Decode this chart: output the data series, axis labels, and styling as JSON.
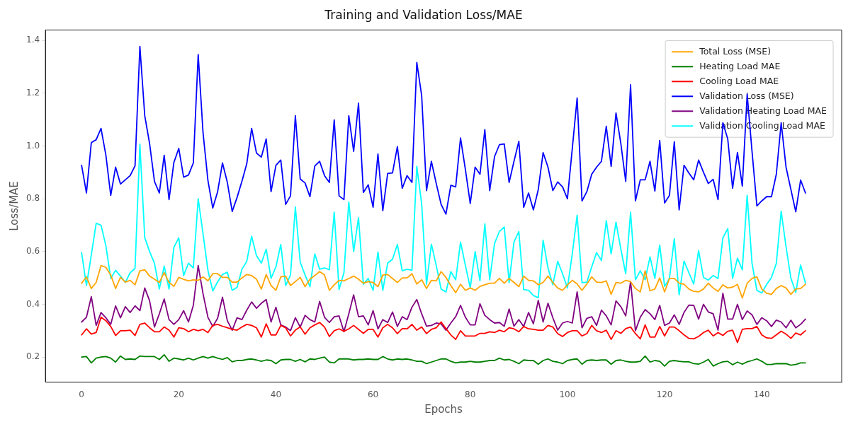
{
  "chart_data": {
    "type": "line",
    "title": "Training and Validation Loss/MAE",
    "xlabel": "Epochs",
    "ylabel": "Loss/MAE",
    "x": [
      0,
      1,
      2,
      3,
      4,
      5,
      6,
      7,
      8,
      9,
      10,
      11,
      12,
      13,
      14,
      15,
      16,
      17,
      18,
      19,
      20,
      21,
      22,
      23,
      24,
      25,
      26,
      27,
      28,
      29,
      30,
      31,
      32,
      33,
      34,
      35,
      36,
      37,
      38,
      39,
      40,
      41,
      42,
      43,
      44,
      45,
      46,
      47,
      48,
      49,
      50,
      51,
      52,
      53,
      54,
      55,
      56,
      57,
      58,
      59,
      60,
      61,
      62,
      63,
      64,
      65,
      66,
      67,
      68,
      69,
      70,
      71,
      72,
      73,
      74,
      75,
      76,
      77,
      78,
      79,
      80,
      81,
      82,
      83,
      84,
      85,
      86,
      87,
      88,
      89,
      90,
      91,
      92,
      93,
      94,
      95,
      96,
      97,
      98,
      99,
      100,
      101,
      102,
      103,
      104,
      105,
      106,
      107,
      108,
      109,
      110,
      111,
      112,
      113,
      114,
      115,
      116,
      117,
      118,
      119,
      120,
      121,
      122,
      123,
      124,
      125,
      126,
      127,
      128,
      129,
      130,
      131,
      132,
      133,
      134,
      135,
      136,
      137,
      138,
      139,
      140,
      141,
      142,
      143,
      144,
      145,
      146,
      147,
      148,
      149
    ],
    "xlim": [
      -7.45,
      156.45
    ],
    "xticks": [
      0,
      20,
      40,
      60,
      80,
      100,
      120,
      140
    ],
    "ylim": [
      0.105,
      1.44
    ],
    "yticks": [
      0.2,
      0.4,
      0.6,
      0.8,
      {
        "value": 1,
        "label": "1.0"
      },
      1.2,
      1.4
    ],
    "legend": "top right",
    "marker": "none",
    "line_style": "solid",
    "series": [
      {
        "name": "Total Loss (MSE)",
        "color": "#ffa500",
        "values": [
          0.48,
          0.504,
          0.46,
          0.483,
          0.547,
          0.54,
          0.511,
          0.46,
          0.502,
          0.484,
          0.491,
          0.474,
          0.527,
          0.531,
          0.507,
          0.495,
          0.483,
          0.52,
          0.483,
          0.468,
          0.502,
          0.495,
          0.489,
          0.493,
          0.491,
          0.504,
          0.489,
          0.516,
          0.516,
          0.502,
          0.502,
          0.484,
          0.484,
          0.5,
          0.513,
          0.509,
          0.495,
          0.458,
          0.513,
          0.471,
          0.453,
          0.504,
          0.507,
          0.471,
          0.486,
          0.502,
          0.467,
          0.495,
          0.509,
          0.524,
          0.511,
          0.453,
          0.474,
          0.491,
          0.489,
          0.498,
          0.507,
          0.495,
          0.48,
          0.486,
          0.483,
          0.467,
          0.511,
          0.513,
          0.498,
          0.483,
          0.5,
          0.5,
          0.516,
          0.477,
          0.493,
          0.46,
          0.491,
          0.489,
          0.524,
          0.502,
          0.471,
          0.444,
          0.476,
          0.453,
          0.462,
          0.453,
          0.468,
          0.474,
          0.48,
          0.48,
          0.498,
          0.48,
          0.498,
          0.483,
          0.467,
          0.507,
          0.491,
          0.489,
          0.474,
          0.483,
          0.507,
          0.483,
          0.462,
          0.453,
          0.474,
          0.491,
          0.477,
          0.453,
          0.477,
          0.504,
          0.484,
          0.483,
          0.489,
          0.438,
          0.483,
          0.48,
          0.491,
          0.486,
          0.46,
          0.447,
          0.527,
          0.451,
          0.458,
          0.5,
          0.447,
          0.498,
          0.498,
          0.48,
          0.476,
          0.458,
          0.449,
          0.447,
          0.458,
          0.48,
          0.462,
          0.449,
          0.474,
          0.462,
          0.465,
          0.476,
          0.424,
          0.48,
          0.498,
          0.504,
          0.458,
          0.442,
          0.438,
          0.46,
          0.471,
          0.462,
          0.438,
          0.458,
          0.46,
          0.476
        ]
      },
      {
        "name": "Heating Load MAE",
        "color": "#008000",
        "values": [
          0.2,
          0.202,
          0.178,
          0.196,
          0.2,
          0.202,
          0.196,
          0.181,
          0.204,
          0.191,
          0.193,
          0.191,
          0.204,
          0.202,
          0.202,
          0.202,
          0.191,
          0.209,
          0.184,
          0.196,
          0.193,
          0.189,
          0.196,
          0.189,
          0.196,
          0.202,
          0.196,
          0.202,
          0.196,
          0.191,
          0.198,
          0.182,
          0.187,
          0.187,
          0.191,
          0.193,
          0.189,
          0.184,
          0.189,
          0.187,
          0.175,
          0.189,
          0.191,
          0.191,
          0.184,
          0.191,
          0.182,
          0.193,
          0.191,
          0.196,
          0.2,
          0.181,
          0.178,
          0.193,
          0.193,
          0.193,
          0.189,
          0.191,
          0.191,
          0.193,
          0.191,
          0.191,
          0.202,
          0.193,
          0.189,
          0.193,
          0.191,
          0.193,
          0.189,
          0.184,
          0.184,
          0.175,
          0.181,
          0.187,
          0.193,
          0.193,
          0.184,
          0.178,
          0.181,
          0.181,
          0.184,
          0.181,
          0.181,
          0.184,
          0.187,
          0.187,
          0.196,
          0.189,
          0.191,
          0.184,
          0.175,
          0.189,
          0.187,
          0.187,
          0.173,
          0.187,
          0.193,
          0.184,
          0.181,
          0.175,
          0.187,
          0.191,
          0.193,
          0.173,
          0.187,
          0.189,
          0.187,
          0.189,
          0.189,
          0.173,
          0.187,
          0.189,
          0.184,
          0.181,
          0.181,
          0.184,
          0.204,
          0.181,
          0.187,
          0.184,
          0.166,
          0.184,
          0.187,
          0.184,
          0.182,
          0.182,
          0.175,
          0.173,
          0.181,
          0.191,
          0.166,
          0.175,
          0.182,
          0.184,
          0.171,
          0.181,
          0.173,
          0.182,
          0.187,
          0.193,
          0.184,
          0.172,
          0.172,
          0.175,
          0.175,
          0.175,
          0.169,
          0.172,
          0.178,
          0.178
        ]
      },
      {
        "name": "Cooling Load MAE",
        "color": "#ff0000",
        "values": [
          0.284,
          0.307,
          0.287,
          0.293,
          0.351,
          0.338,
          0.316,
          0.282,
          0.3,
          0.3,
          0.302,
          0.282,
          0.324,
          0.329,
          0.311,
          0.296,
          0.296,
          0.314,
          0.302,
          0.276,
          0.311,
          0.308,
          0.296,
          0.305,
          0.3,
          0.305,
          0.293,
          0.32,
          0.324,
          0.317,
          0.311,
          0.305,
          0.302,
          0.314,
          0.324,
          0.32,
          0.311,
          0.276,
          0.326,
          0.284,
          0.284,
          0.32,
          0.311,
          0.28,
          0.302,
          0.314,
          0.287,
          0.311,
          0.322,
          0.331,
          0.314,
          0.278,
          0.3,
          0.307,
          0.298,
          0.307,
          0.32,
          0.305,
          0.29,
          0.305,
          0.305,
          0.276,
          0.311,
          0.324,
          0.311,
          0.289,
          0.308,
          0.307,
          0.324,
          0.302,
          0.314,
          0.289,
          0.305,
          0.311,
          0.333,
          0.308,
          0.284,
          0.267,
          0.3,
          0.28,
          0.28,
          0.28,
          0.29,
          0.29,
          0.296,
          0.293,
          0.302,
          0.296,
          0.311,
          0.307,
          0.296,
          0.316,
          0.307,
          0.305,
          0.302,
          0.302,
          0.32,
          0.314,
          0.289,
          0.278,
          0.293,
          0.3,
          0.3,
          0.28,
          0.289,
          0.32,
          0.3,
          0.293,
          0.302,
          0.267,
          0.3,
          0.29,
          0.308,
          0.314,
          0.289,
          0.269,
          0.322,
          0.276,
          0.276,
          0.316,
          0.28,
          0.314,
          0.314,
          0.3,
          0.284,
          0.271,
          0.269,
          0.278,
          0.293,
          0.302,
          0.28,
          0.293,
          0.282,
          0.298,
          0.302,
          0.255,
          0.305,
          0.308,
          0.308,
          0.316,
          0.284,
          0.273,
          0.271,
          0.284,
          0.298,
          0.287,
          0.271,
          0.291,
          0.284,
          0.3
        ]
      },
      {
        "name": "Validation Loss (MSE)",
        "color": "#0000ff",
        "values": [
          0.927,
          0.822,
          1.013,
          1.024,
          1.067,
          0.965,
          0.813,
          0.92,
          0.856,
          0.872,
          0.888,
          0.925,
          1.378,
          1.115,
          1.009,
          0.866,
          0.822,
          0.965,
          0.797,
          0.938,
          0.991,
          0.882,
          0.89,
          0.936,
          1.347,
          1.05,
          0.87,
          0.765,
          0.827,
          0.936,
          0.862,
          0.752,
          0.805,
          0.866,
          0.933,
          1.067,
          0.973,
          0.958,
          1.027,
          0.827,
          0.927,
          0.947,
          0.779,
          0.811,
          1.115,
          0.875,
          0.86,
          0.808,
          0.924,
          0.942,
          0.888,
          0.862,
          1.099,
          0.811,
          0.797,
          1.115,
          0.98,
          1.163,
          0.824,
          0.853,
          0.768,
          0.97,
          0.755,
          0.896,
          0.898,
          0.998,
          0.84,
          0.888,
          0.862,
          1.317,
          1.191,
          0.831,
          0.942,
          0.858,
          0.779,
          0.742,
          0.851,
          0.845,
          1.031,
          0.911,
          0.782,
          0.92,
          0.893,
          1.062,
          0.831,
          0.96,
          1.005,
          1.008,
          0.862,
          0.942,
          1.018,
          0.768,
          0.822,
          0.758,
          0.835,
          0.975,
          0.92,
          0.831,
          0.864,
          0.845,
          0.8,
          0.99,
          1.182,
          0.792,
          0.827,
          0.893,
          0.92,
          0.942,
          1.075,
          0.923,
          1.125,
          1.009,
          0.866,
          1.232,
          0.792,
          0.872,
          0.872,
          0.942,
          0.829,
          1.021,
          0.784,
          0.813,
          1.016,
          0.758,
          0.927,
          0.898,
          0.872,
          0.947,
          0.901,
          0.858,
          0.874,
          0.797,
          1.088,
          1.027,
          0.84,
          0.976,
          0.848,
          1.196,
          0.98,
          0.773,
          0.792,
          0.808,
          0.808,
          0.893,
          1.088,
          0.92,
          0.835,
          0.751,
          0.871,
          0.822
        ]
      },
      {
        "name": "Validation Heating Load MAE",
        "color": "#800080",
        "values": [
          0.333,
          0.351,
          0.429,
          0.32,
          0.369,
          0.349,
          0.324,
          0.394,
          0.349,
          0.391,
          0.369,
          0.394,
          0.376,
          0.462,
          0.413,
          0.314,
          0.364,
          0.42,
          0.342,
          0.324,
          0.342,
          0.376,
          0.333,
          0.396,
          0.547,
          0.44,
          0.351,
          0.316,
          0.347,
          0.427,
          0.338,
          0.302,
          0.349,
          0.342,
          0.378,
          0.409,
          0.385,
          0.404,
          0.418,
          0.333,
          0.389,
          0.322,
          0.314,
          0.3,
          0.349,
          0.314,
          0.358,
          0.342,
          0.333,
          0.411,
          0.351,
          0.331,
          0.353,
          0.356,
          0.296,
          0.364,
          0.436,
          0.353,
          0.356,
          0.322,
          0.376,
          0.307,
          0.342,
          0.331,
          0.371,
          0.316,
          0.353,
          0.342,
          0.389,
          0.418,
          0.364,
          0.317,
          0.32,
          0.329,
          0.326,
          0.302,
          0.329,
          0.353,
          0.396,
          0.351,
          0.322,
          0.322,
          0.402,
          0.358,
          0.342,
          0.329,
          0.331,
          0.317,
          0.382,
          0.317,
          0.342,
          0.316,
          0.369,
          0.326,
          0.415,
          0.333,
          0.404,
          0.349,
          0.302,
          0.329,
          0.335,
          0.329,
          0.447,
          0.311,
          0.347,
          0.353,
          0.32,
          0.378,
          0.356,
          0.322,
          0.413,
          0.391,
          0.356,
          0.486,
          0.3,
          0.351,
          0.38,
          0.364,
          0.342,
          0.396,
          0.32,
          0.329,
          0.36,
          0.324,
          0.369,
          0.397,
          0.396,
          0.344,
          0.4,
          0.371,
          0.364,
          0.302,
          0.442,
          0.344,
          0.344,
          0.4,
          0.342,
          0.375,
          0.36,
          0.324,
          0.349,
          0.338,
          0.316,
          0.34,
          0.333,
          0.311,
          0.34,
          0.311,
          0.324,
          0.344
        ]
      },
      {
        "name": "Validation Cooling Load MAE",
        "color": "#00ffff",
        "values": [
          0.596,
          0.471,
          0.587,
          0.707,
          0.7,
          0.622,
          0.498,
          0.529,
          0.507,
          0.483,
          0.52,
          0.536,
          1.007,
          0.653,
          0.6,
          0.556,
          0.458,
          0.545,
          0.458,
          0.616,
          0.652,
          0.509,
          0.556,
          0.538,
          0.8,
          0.667,
          0.529,
          0.451,
          0.485,
          0.513,
          0.522,
          0.453,
          0.464,
          0.533,
          0.563,
          0.658,
          0.584,
          0.556,
          0.609,
          0.498,
          0.542,
          0.627,
          0.471,
          0.511,
          0.769,
          0.56,
          0.511,
          0.467,
          0.591,
          0.533,
          0.538,
          0.531,
          0.749,
          0.456,
          0.52,
          0.788,
          0.6,
          0.729,
          0.476,
          0.498,
          0.453,
          0.598,
          0.453,
          0.556,
          0.571,
          0.627,
          0.527,
          0.533,
          0.529,
          0.923,
          0.78,
          0.476,
          0.628,
          0.547,
          0.458,
          0.447,
          0.524,
          0.493,
          0.636,
          0.547,
          0.462,
          0.6,
          0.489,
          0.705,
          0.493,
          0.631,
          0.676,
          0.693,
          0.482,
          0.636,
          0.676,
          0.456,
          0.453,
          0.433,
          0.425,
          0.643,
          0.538,
          0.474,
          0.563,
          0.516,
          0.462,
          0.591,
          0.738,
          0.482,
          0.484,
          0.542,
          0.596,
          0.566,
          0.717,
          0.591,
          0.711,
          0.609,
          0.516,
          0.749,
          0.493,
          0.527,
          0.493,
          0.58,
          0.498,
          0.625,
          0.468,
          0.498,
          0.649,
          0.436,
          0.564,
          0.52,
          0.477,
          0.604,
          0.502,
          0.492,
          0.509,
          0.498,
          0.652,
          0.687,
          0.498,
          0.575,
          0.531,
          0.813,
          0.555,
          0.453,
          0.443,
          0.475,
          0.502,
          0.555,
          0.753,
          0.618,
          0.499,
          0.445,
          0.549,
          0.48
        ]
      }
    ]
  }
}
